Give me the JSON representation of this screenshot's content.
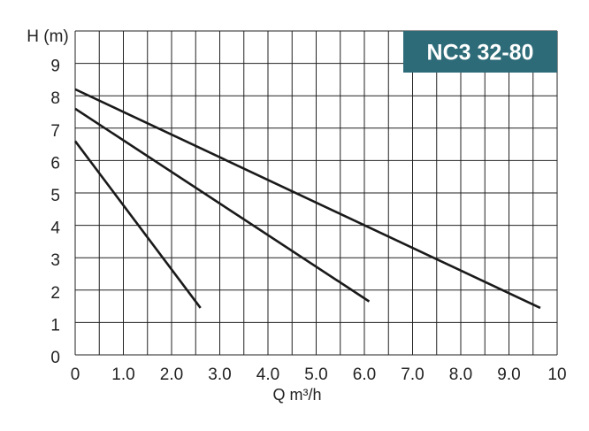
{
  "chart_data": {
    "type": "line",
    "title": "NC3 32-80",
    "xlabel": "Q m³/h",
    "ylabel": "H (m)",
    "xlim": [
      0,
      10
    ],
    "ylim": [
      0,
      10
    ],
    "xticks": [
      0,
      {
        "value": 1,
        "label": "1.0"
      },
      {
        "value": 2,
        "label": "2.0"
      },
      {
        "value": 3,
        "label": "3.0"
      },
      {
        "value": 4,
        "label": "4.0"
      },
      {
        "value": 5,
        "label": "5.0"
      },
      {
        "value": 6,
        "label": "6.0"
      },
      {
        "value": 7,
        "label": "7.0"
      },
      {
        "value": 8,
        "label": "8.0"
      },
      {
        "value": 9,
        "label": "9.0"
      },
      10
    ],
    "x_minor_ticks": [
      0.5,
      1.5,
      2.5,
      3.5,
      4.5,
      5.5,
      6.5,
      7.5,
      8.5,
      9.5
    ],
    "yticks": [
      0,
      1,
      2,
      3,
      4,
      5,
      6,
      7,
      8,
      9
    ],
    "grid": true,
    "title_color": "#2e6b78",
    "series": [
      {
        "color": "#1a1a1a",
        "x": [
          0,
          2.6
        ],
        "values": [
          6.6,
          1.45
        ]
      },
      {
        "color": "#1a1a1a",
        "x": [
          0,
          6.1
        ],
        "values": [
          7.6,
          1.65
        ]
      },
      {
        "color": "#1a1a1a",
        "x": [
          0,
          9.65
        ],
        "values": [
          8.2,
          1.45
        ]
      }
    ]
  }
}
